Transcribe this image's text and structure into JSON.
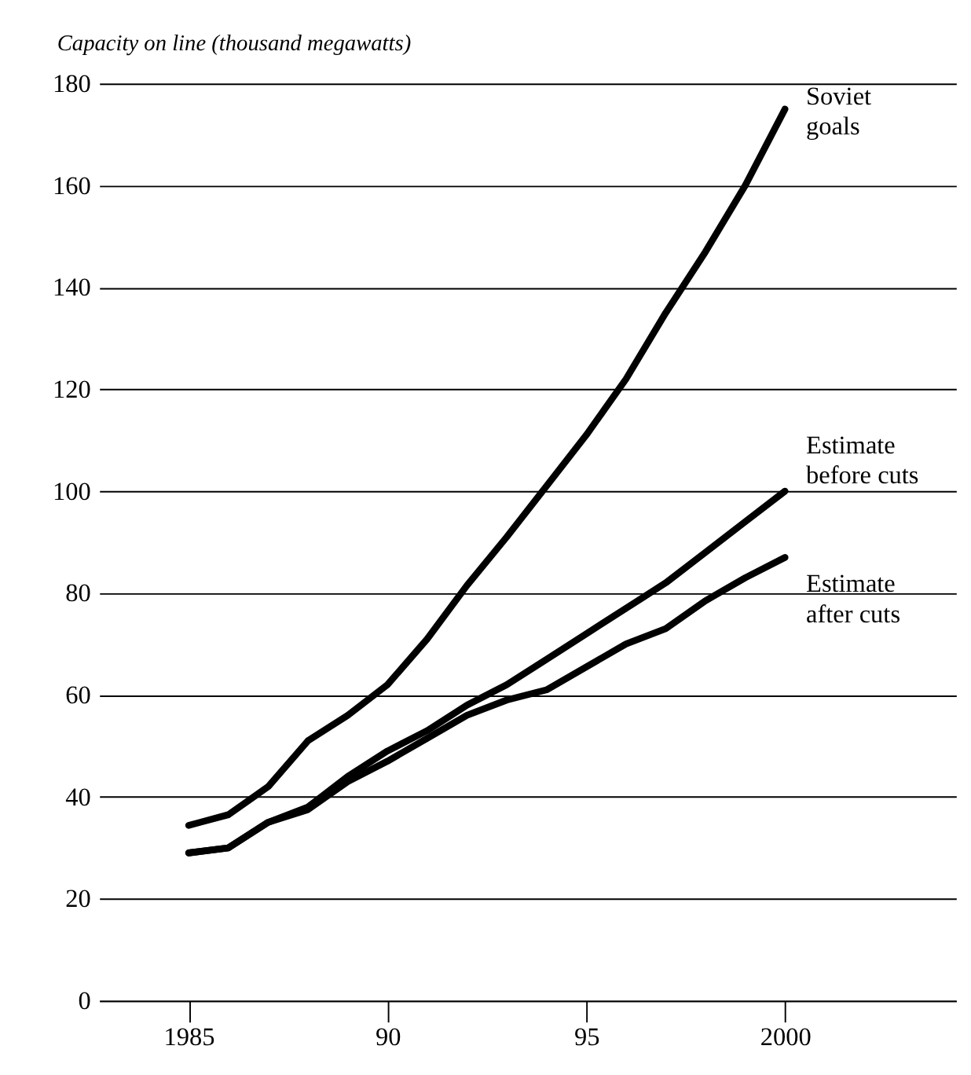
{
  "chart_data": {
    "type": "line",
    "ylabel": "Capacity on line (thousand megawatts)",
    "x": [
      1985,
      1986,
      1987,
      1988,
      1989,
      1990,
      1991,
      1992,
      1993,
      1994,
      1995,
      1996,
      1997,
      1998,
      1999,
      2000
    ],
    "series": [
      {
        "name": "Soviet\ngoals",
        "color": "#000000",
        "values": [
          34.4,
          36.5,
          42,
          51,
          56,
          62,
          71,
          81.5,
          91,
          101,
          111,
          122,
          135,
          147,
          160,
          175
        ]
      },
      {
        "name": "Estimate\nbefore cuts",
        "color": "#000000",
        "values": [
          29,
          30,
          35,
          38,
          44,
          49,
          53,
          58,
          62,
          67,
          72,
          77,
          82,
          88,
          94,
          100
        ]
      },
      {
        "name": "Estimate\nafter cuts",
        "color": "#000000",
        "values": [
          29,
          30,
          35,
          37.5,
          43,
          47,
          51.5,
          56,
          59,
          61,
          65.5,
          70,
          73,
          78.5,
          83,
          87
        ]
      }
    ],
    "xlim": [
      1982.75,
      2004.3
    ],
    "xticks": [
      1985,
      {
        "value": 1990,
        "label": "90"
      },
      {
        "value": 1995,
        "label": "95"
      },
      2000
    ],
    "ylim": [
      0,
      180
    ],
    "yticks": [
      0,
      20,
      40,
      60,
      80,
      100,
      120,
      140,
      160,
      180
    ],
    "grid": "y",
    "legend": false,
    "marker": "none",
    "line_style": "solid"
  }
}
